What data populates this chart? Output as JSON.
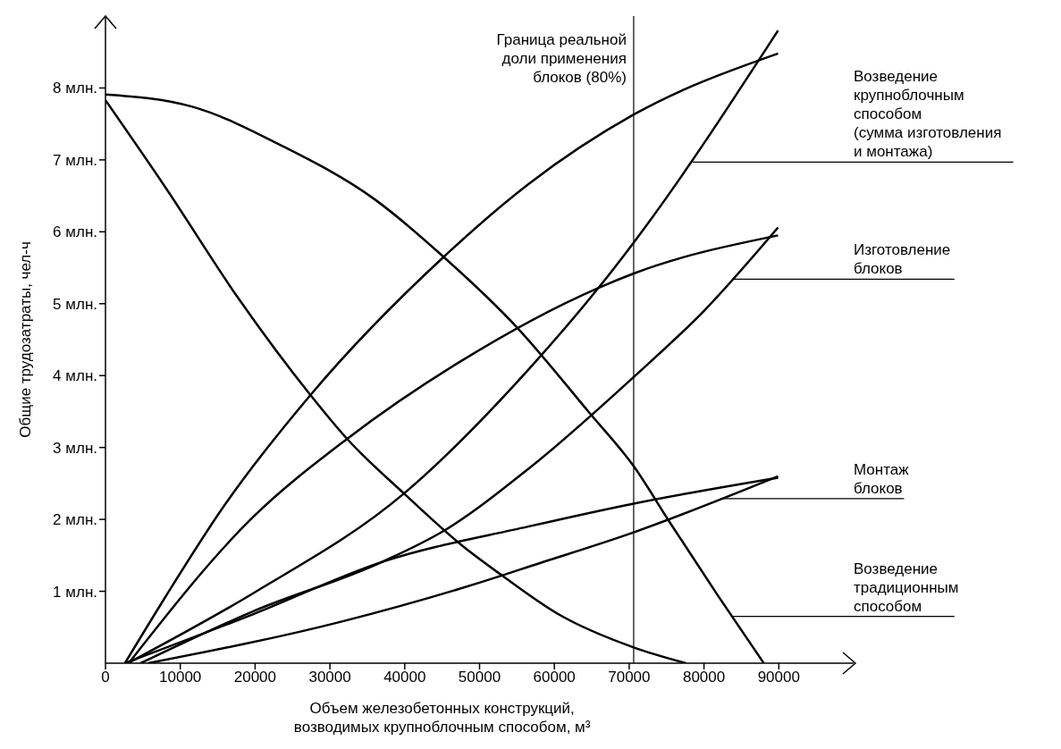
{
  "chart_data": {
    "type": "line",
    "xlabel": "Объем железобетонных конструкций,\nвозводимых крупноблочным способом, м³",
    "ylabel": "Общие трудозатраты, чел-ч",
    "xlim": [
      0,
      100000
    ],
    "xticks": [
      0,
      10000,
      20000,
      30000,
      40000,
      50000,
      60000,
      70000,
      80000,
      90000
    ],
    "ylim": [
      0,
      9
    ],
    "yticks": [
      {
        "value": 1,
        "label": "1 млн."
      },
      {
        "value": 2,
        "label": "2 млн."
      },
      {
        "value": 3,
        "label": "3 млн."
      },
      {
        "value": 4,
        "label": "4 млн."
      },
      {
        "value": 5,
        "label": "5 млн."
      },
      {
        "value": 6,
        "label": "6 млн."
      },
      {
        "value": 7,
        "label": "7 млн."
      },
      {
        "value": 8,
        "label": "8 млн."
      }
    ],
    "grid": false,
    "marker": "none",
    "line_style": "solid",
    "series": [
      {
        "color": "#000000",
        "x": [
          0,
          11600,
          23700,
          36000,
          45200,
          55000,
          64700,
          70600,
          75300,
          81800,
          88000
        ],
        "values": [
          7.91,
          7.74,
          7.19,
          6.45,
          5.65,
          4.67,
          3.48,
          2.74,
          1.98,
          0.95,
          0
        ]
      },
      {
        "color": "#000000",
        "x": [
          0,
          8000,
          17600,
          27400,
          32300,
          39900,
          47500,
          53000,
          60400,
          70600,
          77600
        ],
        "values": [
          7.83,
          6.62,
          5.1,
          3.73,
          3.12,
          2.36,
          1.65,
          1.22,
          0.69,
          0.22,
          0
        ]
      },
      {
        "color": "#000000",
        "x": [
          2600,
          8000,
          15600,
          27400,
          45200,
          56500,
          70600,
          89900
        ],
        "values": [
          0,
          0.92,
          2.15,
          3.73,
          5.65,
          6.66,
          7.63,
          8.48
        ]
      },
      {
        "color": "#000000",
        "x": [
          3000,
          19700,
          39900,
          56500,
          65900,
          70600,
          89900
        ],
        "values": [
          0,
          0.97,
          2.36,
          4.08,
          5.22,
          5.85,
          8.8
        ]
      },
      {
        "color": "#000000",
        "x": [
          3100,
          19700,
          32300,
          47500,
          65900,
          70600,
          89900
        ],
        "values": [
          0,
          2.03,
          3.12,
          4.2,
          5.22,
          5.42,
          5.95
        ]
      },
      {
        "color": "#000000",
        "x": [
          4700,
          19700,
          37000,
          45200,
          56500,
          70600,
          80000,
          89900
        ],
        "values": [
          0,
          0.72,
          1.41,
          1.84,
          2.7,
          3.98,
          4.9,
          6.06
        ]
      },
      {
        "color": "#000000",
        "x": [
          2600,
          19700,
          37000,
          56500,
          70600,
          89900
        ],
        "values": [
          0,
          0.68,
          1.41,
          1.9,
          2.22,
          2.58
        ]
      },
      {
        "color": "#000000",
        "x": [
          5700,
          31600,
          53000,
          56500,
          70600,
          89900
        ],
        "values": [
          0,
          0.58,
          1.22,
          1.34,
          1.82,
          2.6
        ]
      }
    ],
    "ref_lines": [
      {
        "axis": "x",
        "value": 70600,
        "label": "Граница реальной\nдоли применения\nблоков (80%)",
        "color": "#000000"
      }
    ],
    "annotations": [
      {
        "text": "Возведение\nкрупноблочным\nспособом\n(сумма изготовления\nи монтажа)",
        "x": 78500,
        "y": 6.97
      },
      {
        "text": "Изготовление\nблоков",
        "x": 83800,
        "y": 5.34
      },
      {
        "text": "Монтаж\nблоков",
        "x": 82200,
        "y": 2.29
      },
      {
        "text": "Возведение\nтрадиционным\nспособом",
        "x": 83800,
        "y": 0.65
      }
    ]
  }
}
